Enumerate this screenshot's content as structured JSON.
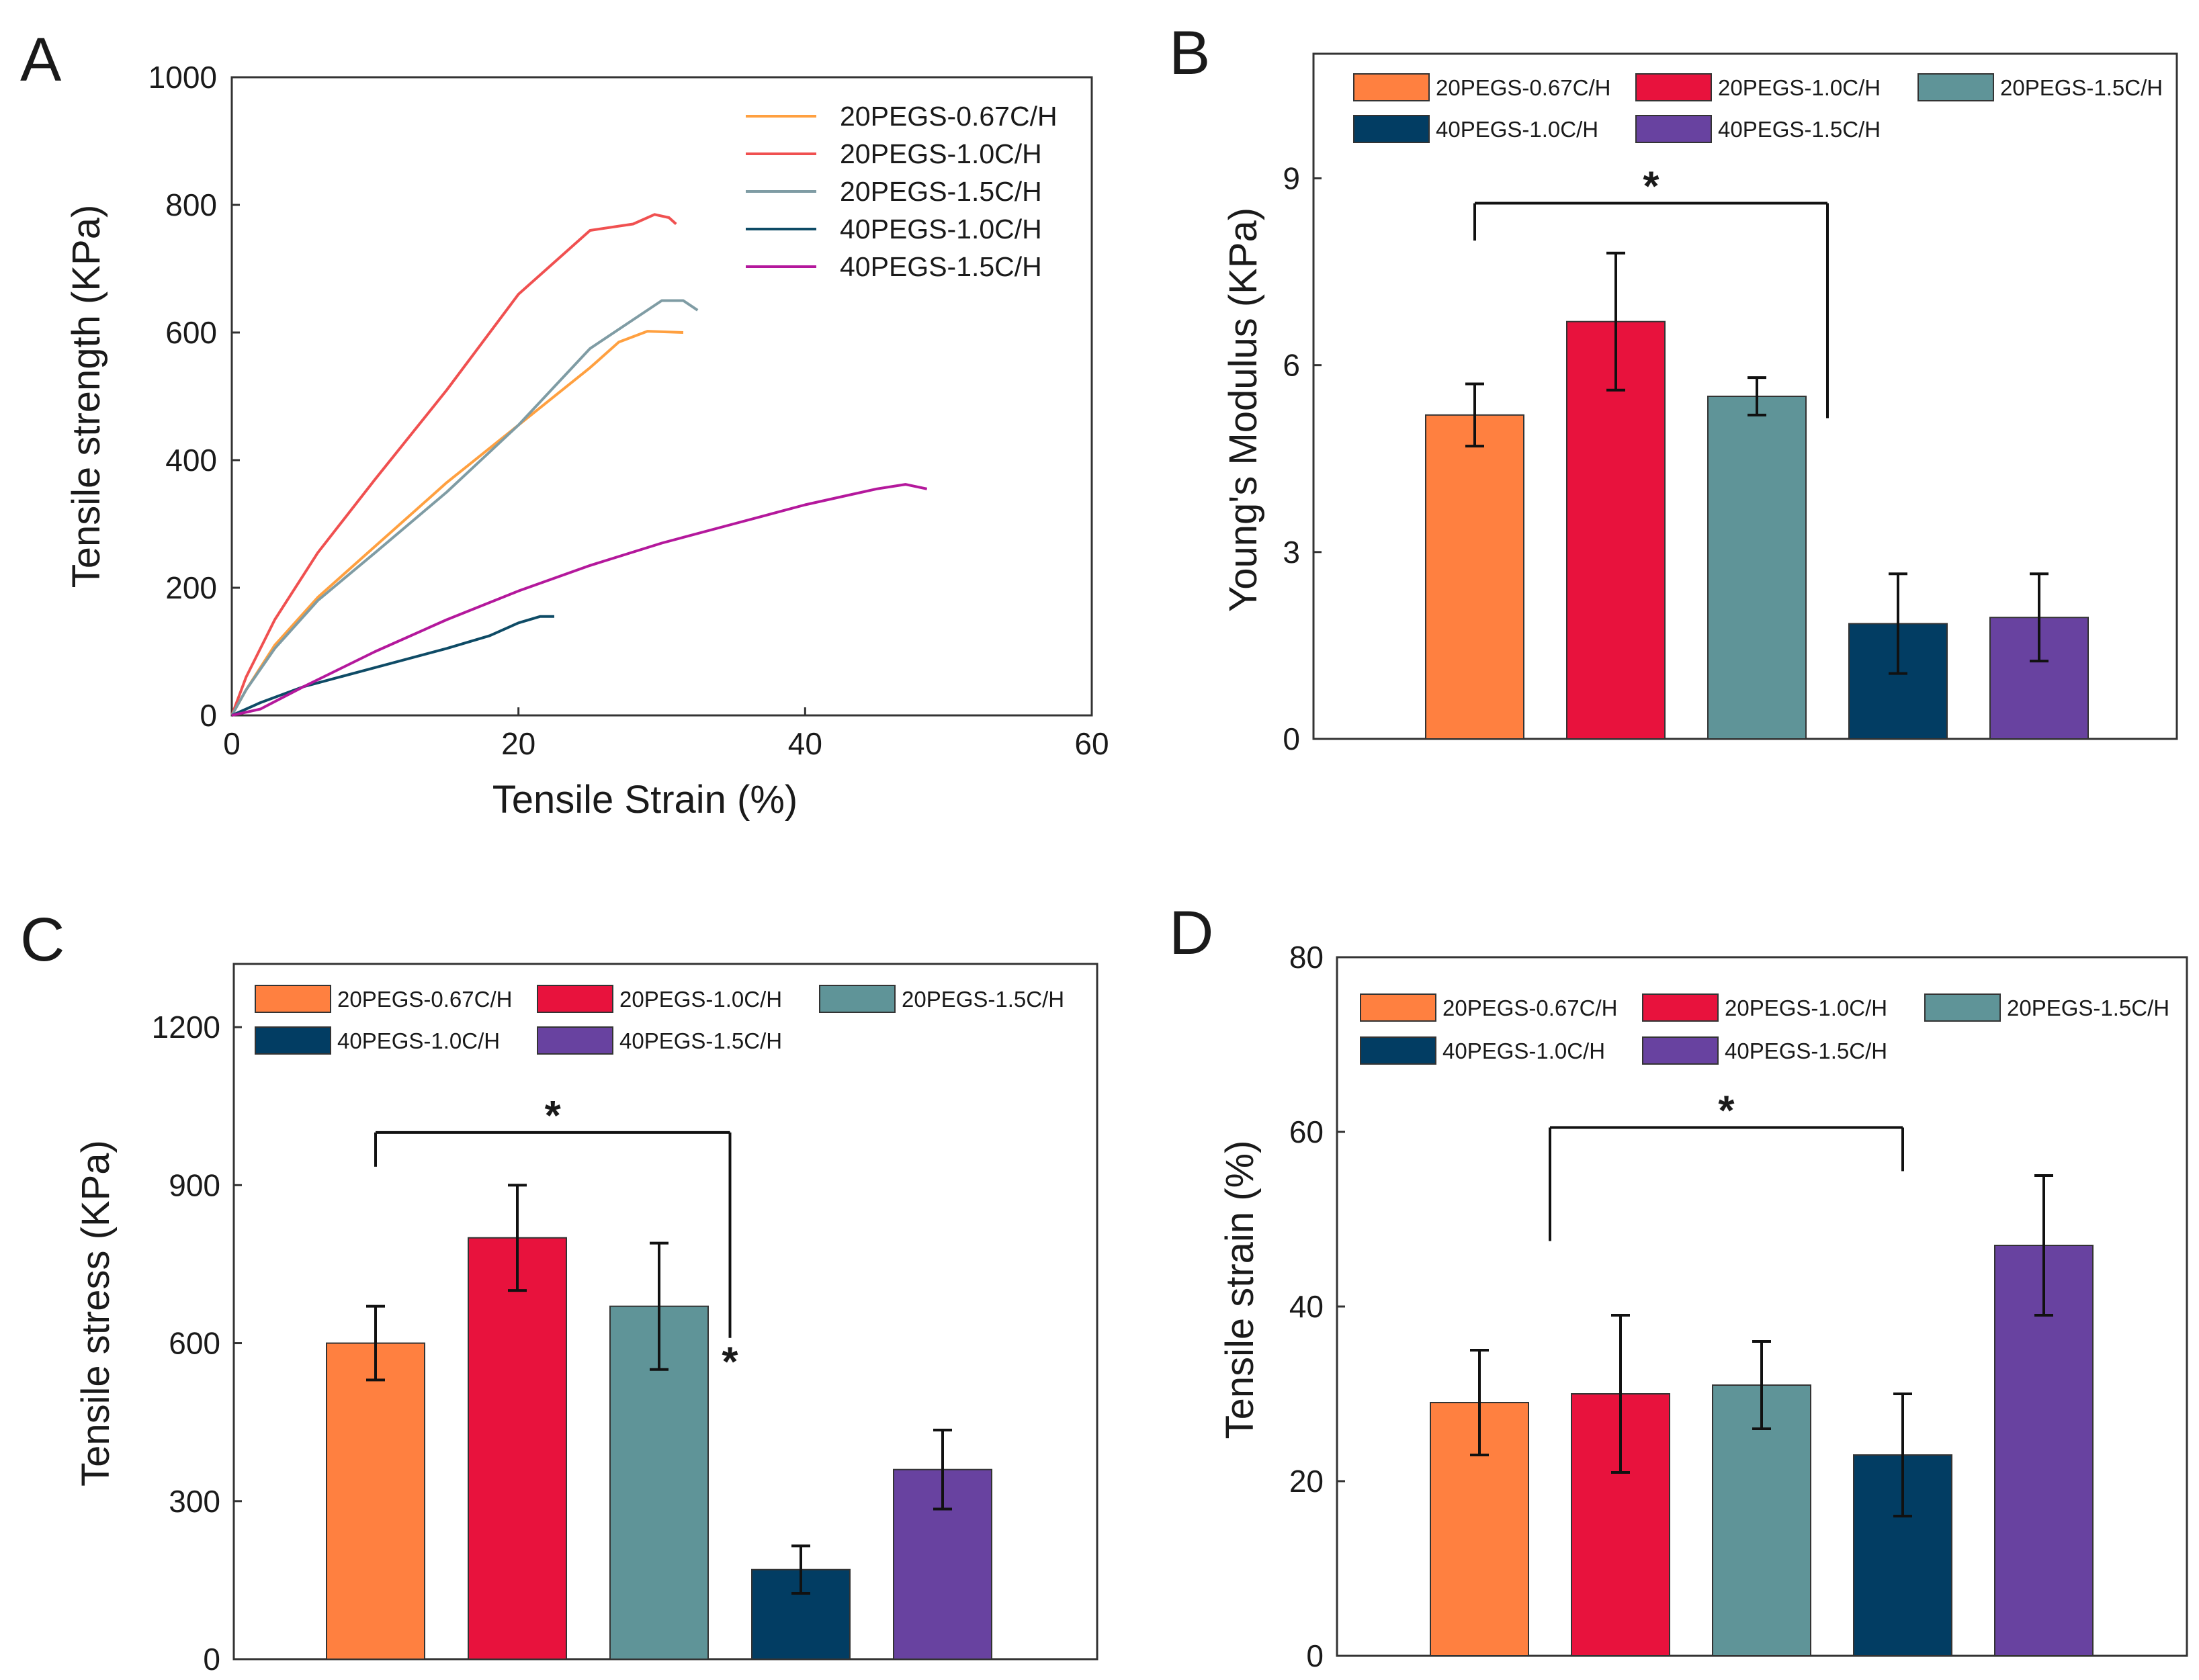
{
  "colors": {
    "20PEGS-0.67C/H": "#FF8040",
    "20PEGS-1.0C/H": "#E8123D",
    "20PEGS-1.5C/H": "#5F9498",
    "40PEGS-1.0C/H": "#023D63",
    "40PEGS-1.5C/H": "#6842A0",
    "line_20PEGS-0.67C/H": "#FFA040",
    "line_20PEGS-1.0C/H": "#F05050",
    "line_20PEGS-1.5C/H": "#7F9CA4",
    "line_40PEGS-1.0C/H": "#0E4B66",
    "line_40PEGS-1.5C/H": "#B4189C"
  },
  "chart_data": [
    {
      "id": "A",
      "panel_label": "A",
      "type": "line",
      "title": "",
      "xlabel": "Tensile Strain (%)",
      "ylabel": "Tensile strength (KPa)",
      "xlim": [
        0,
        60
      ],
      "ylim": [
        0,
        1000
      ],
      "xticks": [
        0,
        20,
        40,
        60
      ],
      "yticks": [
        0,
        200,
        400,
        600,
        800,
        1000
      ],
      "legend_position": "top-right",
      "series": [
        {
          "name": "20PEGS-0.67C/H",
          "x": [
            0,
            1,
            3,
            6,
            10,
            15,
            20,
            25,
            27,
            29,
            31.5
          ],
          "y": [
            0,
            40,
            110,
            185,
            265,
            365,
            455,
            545,
            585,
            602,
            600
          ]
        },
        {
          "name": "20PEGS-1.0C/H",
          "x": [
            0,
            1,
            3,
            6,
            10,
            15,
            20,
            25,
            28,
            29.5,
            30.5,
            31
          ],
          "y": [
            0,
            60,
            150,
            255,
            370,
            510,
            660,
            760,
            770,
            785,
            780,
            770
          ]
        },
        {
          "name": "20PEGS-1.5C/H",
          "x": [
            0,
            1,
            3,
            6,
            10,
            15,
            20,
            25,
            28,
            30,
            31.5,
            32.5
          ],
          "y": [
            0,
            40,
            105,
            180,
            255,
            350,
            455,
            575,
            620,
            650,
            650,
            635
          ]
        },
        {
          "name": "40PEGS-1.0C/H",
          "x": [
            0,
            2,
            5,
            10,
            15,
            18,
            20,
            21.5,
            22.5
          ],
          "y": [
            0,
            20,
            45,
            75,
            105,
            125,
            145,
            155,
            155
          ]
        },
        {
          "name": "40PEGS-1.5C/H",
          "x": [
            0,
            2,
            5,
            10,
            15,
            20,
            25,
            30,
            35,
            40,
            45,
            47,
            48.5
          ],
          "y": [
            0,
            10,
            45,
            100,
            150,
            195,
            235,
            270,
            300,
            330,
            355,
            362,
            355
          ]
        }
      ]
    },
    {
      "id": "B",
      "panel_label": "B",
      "type": "bar",
      "title": "",
      "xlabel": "",
      "ylabel": "Young's Modulus (KPa)",
      "ylim": [
        0,
        11
      ],
      "yticks": [
        0,
        3,
        6,
        9
      ],
      "categories": [
        "20PEGS-0.67C/H",
        "20PEGS-1.0C/H",
        "20PEGS-1.5C/H",
        "40PEGS-1.0C/H",
        "40PEGS-1.5C/H"
      ],
      "values": [
        5.2,
        6.7,
        5.5,
        1.85,
        1.95
      ],
      "errors": [
        0.5,
        1.1,
        0.3,
        0.8,
        0.7
      ],
      "legend_position": "top",
      "annotations": [
        {
          "text": "*",
          "from_x": 1,
          "to_x": 3.5,
          "level": 8.6,
          "stems_to": [
            8.0,
            5.15
          ]
        }
      ]
    },
    {
      "id": "C",
      "panel_label": "C",
      "type": "bar",
      "title": "",
      "xlabel": "",
      "ylabel": "Tensile stress (KPa)",
      "ylim": [
        0,
        1320
      ],
      "yticks": [
        0,
        300,
        600,
        900,
        1200
      ],
      "categories": [
        "20PEGS-0.67C/H",
        "20PEGS-1.0C/H",
        "20PEGS-1.5C/H",
        "40PEGS-1.0C/H",
        "40PEGS-1.5C/H"
      ],
      "values": [
        600,
        800,
        670,
        170,
        360
      ],
      "errors": [
        70,
        100,
        120,
        45,
        75
      ],
      "legend_position": "top",
      "annotations": [
        {
          "text": "*",
          "from_x": 1,
          "to_x": 3.5,
          "level": 1000,
          "stems_to": [
            935,
            610
          ]
        },
        {
          "text": "*",
          "from_x": 3.5,
          "to_x": 3.5,
          "level": 530
        }
      ]
    },
    {
      "id": "D",
      "panel_label": "D",
      "type": "bar",
      "title": "",
      "xlabel": "",
      "ylabel": "Tensile strain (%)",
      "ylim": [
        0,
        80
      ],
      "yticks": [
        0,
        20,
        40,
        60,
        80
      ],
      "categories": [
        "20PEGS-0.67C/H",
        "20PEGS-1.0C/H",
        "20PEGS-1.5C/H",
        "40PEGS-1.0C/H",
        "40PEGS-1.5C/H"
      ],
      "values": [
        29,
        30,
        31,
        23,
        47
      ],
      "errors": [
        6,
        9,
        5,
        7,
        8
      ],
      "legend_position": "top",
      "annotations": [
        {
          "text": "*",
          "from_x": 1.5,
          "to_x": 4,
          "level": 60.5,
          "stems_to": [
            47.5,
            55.5
          ]
        }
      ]
    }
  ]
}
